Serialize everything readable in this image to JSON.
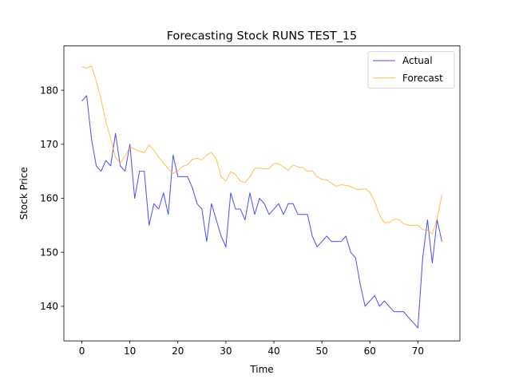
{
  "chart_data": {
    "type": "line",
    "title": "Forecasting Stock RUNS TEST_15",
    "xlabel": "Time",
    "ylabel": "Stock Price",
    "xlim": [
      -3.75,
      78.75
    ],
    "ylim": [
      133.6,
      188.2
    ],
    "x_ticks": [
      0,
      10,
      20,
      30,
      40,
      50,
      60,
      70
    ],
    "y_ticks": [
      140,
      150,
      160,
      170,
      180
    ],
    "grid": false,
    "legend_position": "upper right",
    "series": [
      {
        "name": "Actual",
        "color": "#0000ff",
        "values": [
          178,
          179,
          171,
          166,
          165,
          167,
          166,
          172,
          166,
          165,
          170,
          160,
          165,
          165,
          155,
          159,
          158,
          161,
          157,
          168,
          164,
          164,
          164,
          162,
          159,
          158,
          152,
          159,
          156,
          153,
          151,
          161,
          158,
          158,
          156,
          161,
          157,
          160,
          159,
          157,
          158,
          159,
          157,
          159,
          159,
          157,
          157,
          157,
          153,
          151,
          152,
          153,
          152,
          152,
          152,
          153,
          150,
          149,
          144,
          140,
          141,
          142,
          140,
          141,
          140,
          139,
          139,
          139,
          138,
          137,
          136,
          149,
          156,
          148,
          156,
          152
        ]
      },
      {
        "name": "Forecast",
        "color": "#ffa500",
        "values": [
          184.4,
          184.1,
          184.5,
          181.7,
          178.3,
          174.2,
          171.0,
          167.6,
          166.5,
          167.8,
          169.5,
          169.1,
          168.7,
          168.4,
          169.9,
          168.9,
          167.6,
          166.5,
          165.5,
          164.6,
          165.1,
          165.9,
          166.2,
          167.2,
          167.4,
          167.1,
          168.0,
          168.5,
          167.3,
          164.0,
          163.2,
          164.9,
          164.4,
          163.2,
          162.9,
          164.0,
          165.5,
          165.6,
          165.4,
          165.5,
          166.4,
          166.4,
          165.8,
          165.2,
          166.2,
          165.8,
          165.7,
          165.0,
          165.1,
          164.0,
          163.5,
          163.4,
          162.8,
          162.2,
          162.5,
          162.4,
          162.2,
          161.7,
          161.6,
          161.8,
          161.1,
          159.4,
          156.9,
          155.5,
          155.5,
          156.1,
          156.1,
          155.3,
          155.0,
          155.0,
          155.0,
          154.2,
          154.1,
          153.4,
          156.2,
          160.6
        ]
      }
    ]
  }
}
